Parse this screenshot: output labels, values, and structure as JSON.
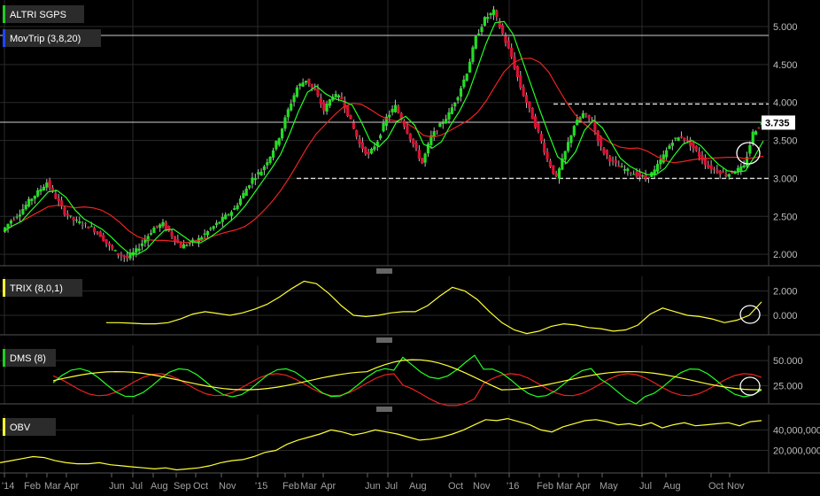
{
  "chart_data": {
    "type": "candlestick-with-indicators",
    "panels": [
      {
        "name": "ALTRI SGPS",
        "legend": [
          {
            "label": "ALTRI SGPS",
            "color": "#22cc22"
          },
          {
            "label": "MovTrip (3,8,20)",
            "color": "#2244ff"
          }
        ],
        "y_ticks": [
          "5.000",
          "4.500",
          "4.000",
          "3.500",
          "3.000",
          "2.500",
          "2.000"
        ],
        "y_tick_values": [
          5.0,
          4.5,
          4.0,
          3.5,
          3.0,
          2.5,
          2.0
        ],
        "ylim": [
          1.85,
          5.35
        ],
        "last_price": "3.735",
        "support_level": 3.0,
        "resistance_level": 3.98,
        "price_series": [
          2.3,
          2.45,
          2.55,
          2.7,
          2.82,
          2.95,
          2.75,
          2.55,
          2.45,
          2.4,
          2.35,
          2.25,
          2.1,
          2.0,
          1.95,
          2.05,
          2.2,
          2.35,
          2.4,
          2.25,
          2.1,
          2.15,
          2.2,
          2.3,
          2.4,
          2.5,
          2.6,
          2.8,
          3.0,
          3.1,
          3.3,
          3.55,
          3.9,
          4.2,
          4.3,
          4.15,
          3.9,
          4.1,
          4.05,
          3.75,
          3.45,
          3.3,
          3.5,
          3.8,
          3.95,
          3.7,
          3.45,
          3.2,
          3.55,
          3.7,
          3.85,
          4.1,
          4.4,
          4.85,
          5.1,
          5.2,
          4.9,
          4.6,
          4.2,
          3.9,
          3.6,
          3.25,
          3.0,
          3.35,
          3.7,
          3.85,
          3.75,
          3.4,
          3.25,
          3.15,
          3.1,
          3.05,
          3.0,
          3.1,
          3.3,
          3.5,
          3.55,
          3.45,
          3.3,
          3.15,
          3.1,
          3.05,
          3.1,
          3.15,
          3.6,
          3.735
        ]
      },
      {
        "name": "TRIX (8,0,1)",
        "legend_color": "#ffff33",
        "y_ticks": [
          "2.000",
          "0.000"
        ],
        "y_tick_values": [
          2.0,
          0.0
        ],
        "ylim": [
          -1.6,
          3.2
        ]
      },
      {
        "name": "DMS (8)",
        "legend_color": "#22cc22",
        "y_ticks": [
          "50.000",
          "25.000"
        ],
        "y_tick_values": [
          50.0,
          25.0
        ],
        "ylim": [
          7,
          65
        ]
      },
      {
        "name": "OBV",
        "legend_color": "#ffff33",
        "y_ticks": [
          "40,000,000",
          "20,000,000"
        ],
        "y_tick_values": [
          40000000,
          20000000
        ],
        "ylim": [
          -2000000,
          55000000
        ]
      }
    ],
    "x_ticks": [
      "'14",
      "Feb",
      "Mar",
      "Apr",
      "Jun",
      "Jul",
      "Aug",
      "Sep",
      "Oct",
      "Nov",
      "'15",
      "Feb",
      "Mar",
      "Apr",
      "Jun",
      "Jul",
      "Aug",
      "Oct",
      "Nov",
      "'16",
      "Feb",
      "Mar",
      "Apr",
      "May",
      "Jul",
      "Aug",
      "Oct",
      "Nov"
    ],
    "colors": {
      "up": "#22dd22",
      "down": "#dd1133",
      "ma_fast": "#22ff22",
      "ma_slow": "#ee2222",
      "indicator": "#ffff33",
      "grid": "#2a2a2a",
      "background": "#000000"
    }
  }
}
